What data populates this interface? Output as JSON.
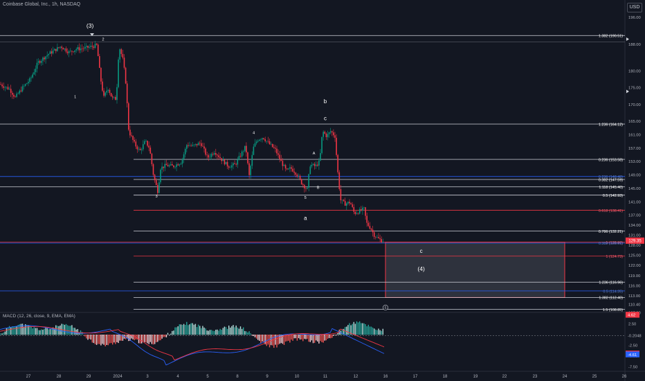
{
  "header": {
    "symbol_title": "Coinbase Global, Inc., 1h, NASDAQ",
    "currency_label": "USD"
  },
  "chart_data": {
    "type": "candlestick",
    "price_axis": {
      "ticks": [
        196.0,
        188.0,
        180.0,
        175.0,
        170.0,
        165.0,
        161.0,
        157.0,
        153.0,
        149.0,
        145.0,
        141.0,
        137.0,
        134.0,
        131.0,
        128.0,
        125.0,
        122.0,
        119.0,
        116.0,
        113.0,
        110.4,
        107.9
      ],
      "tick_labels": [
        "196.00",
        "188.00",
        "180.00",
        "175.00",
        "170.00",
        "165.00",
        "161.00",
        "157.00",
        "153.00",
        "149.00",
        "145.00",
        "141.00",
        "137.00",
        "134.00",
        "131.00",
        "128.00",
        "125.00",
        "122.00",
        "119.00",
        "116.00",
        "113.00",
        "110.40",
        "107.90"
      ],
      "current_price": "129.35",
      "current_price_color": "#f23645"
    },
    "time_axis": {
      "labels": [
        "27",
        "28",
        "29",
        "2024",
        "3",
        "4",
        "5",
        "8",
        "9",
        "10",
        "11",
        "12",
        "16",
        "17",
        "18",
        "19",
        "22",
        "23",
        "24",
        "25",
        "26"
      ]
    },
    "fib_levels": [
      {
        "label": "1.382 (190.51)",
        "price": 190.51,
        "color": "#d1d4dc",
        "text_color": "#ffffff"
      },
      {
        "label": "1.236 (164.12)",
        "price": 164.12,
        "color": "#d1d4dc",
        "text_color": "#ffffff"
      },
      {
        "label": "0.236 (153.58)",
        "price": 153.58,
        "color": "#d1d4dc",
        "text_color": "#ffffff"
      },
      {
        "label": "0.236 (148.48)",
        "price": 148.48,
        "color": "#2962ff",
        "text_color": "#5b7cc6"
      },
      {
        "label": "0.382 (147.59)",
        "price": 147.59,
        "color": "#d1d4dc",
        "text_color": "#ffffff"
      },
      {
        "label": "1.118 (145.40)",
        "price": 145.4,
        "color": "#d1d4dc",
        "text_color": "#ffffff"
      },
      {
        "label": "0.5 (142.93)",
        "price": 142.93,
        "color": "#d1d4dc",
        "text_color": "#ffffff"
      },
      {
        "label": "0.618 (138.41)",
        "price": 138.41,
        "color": "#f23645",
        "text_color": "#f06070"
      },
      {
        "label": "0.786 (132.21)",
        "price": 132.21,
        "color": "#d1d4dc",
        "text_color": "#ffffff"
      },
      {
        "label": "1 (128.90)",
        "price": 128.9,
        "color": "#f23645",
        "text_color": "#f06070"
      },
      {
        "label": "0.382 (128.61)",
        "price": 128.61,
        "color": "#2962ff",
        "text_color": "#5b7cc6"
      },
      {
        "label": "1 (124.73)",
        "price": 124.73,
        "color": "#f23645",
        "text_color": "#f06070"
      },
      {
        "label": "1.236 (116.96)",
        "price": 116.96,
        "color": "#d1d4dc",
        "text_color": "#ffffff"
      },
      {
        "label": "0.5 (114.35)",
        "price": 114.35,
        "color": "#2962ff",
        "text_color": "#5b7cc6"
      },
      {
        "label": "1.382 (112.40)",
        "price": 112.4,
        "color": "#d1d4dc",
        "text_color": "#ffffff"
      },
      {
        "label": "1.5 (108.85)",
        "price": 108.85,
        "color": "#d1d4dc",
        "text_color": "#ffffff"
      }
    ],
    "wave_labels": [
      {
        "text": "(3)",
        "day": 29.1,
        "price": 193.5
      },
      {
        "text": "2",
        "day": 30.0,
        "price": 189.6
      },
      {
        "text": "1",
        "day": 28.55,
        "price": 172.5
      },
      {
        "text": "3",
        "day": 3.3,
        "price": 142.9
      },
      {
        "text": "4",
        "day": 8.55,
        "price": 161.8
      },
      {
        "text": "5",
        "day": 10.3,
        "price": 142.4
      },
      {
        "text": "A",
        "day": 10.6,
        "price": 155.7
      },
      {
        "text": "B",
        "day": 10.75,
        "price": 145.4
      },
      {
        "text": "a",
        "day": 10.3,
        "price": 136.1
      },
      {
        "text": "b",
        "day": 11.0,
        "price": 170.9
      },
      {
        "text": "c",
        "day": 11.0,
        "price": 165.9
      },
      {
        "text": "c",
        "day": 17.2,
        "price": 126.3
      },
      {
        "text": "(4)",
        "day": 17.2,
        "price": 121.0
      },
      {
        "text": "6",
        "day": 16.0,
        "price": 109.4
      }
    ],
    "target_zone": {
      "day_start": 16.0,
      "day_end": 24.0,
      "price_top": 128.9,
      "price_bottom": 112.4
    },
    "macd": {
      "label": "MACD (12, 26, close, 9, EMA, EMA)",
      "axis_ticks": [
        "2.50",
        "-2.50",
        "-5.00",
        "-7.50"
      ],
      "value_labels": [
        {
          "text": "4.62",
          "value": 4.62,
          "bg": "#f23645"
        },
        {
          "text": "-0.2048",
          "value": -0.2048,
          "bg": ""
        },
        {
          "text": "-4.41",
          "value": -4.41,
          "bg": "#f23645"
        },
        {
          "text": "-4.61",
          "value": -4.61,
          "bg": "#2962ff"
        }
      ]
    }
  }
}
